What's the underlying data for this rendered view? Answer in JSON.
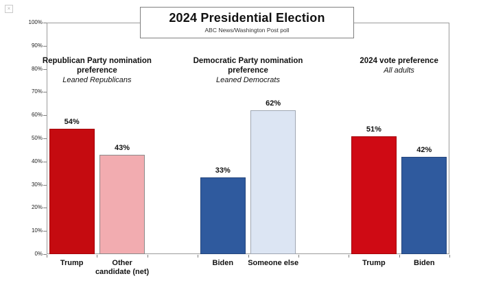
{
  "window": {
    "background": "#ffffff"
  },
  "icons": {
    "broken_image_glyph": "×"
  },
  "title_box": {
    "title": "2024 Presidential Election",
    "subtitle": "ABC News/Washington Post poll"
  },
  "chart_data": {
    "type": "bar",
    "title": "2024 Presidential Election",
    "subtitle": "ABC News/Washington Post poll",
    "xlabel": "",
    "ylabel": "",
    "ylim": [
      0,
      100
    ],
    "ytick_step": 10,
    "ytick_suffix": "%",
    "grid": false,
    "legend": "none",
    "categories": [
      "Trump",
      "Other candidate (net)",
      "Biden",
      "Someone else",
      "Trump",
      "Biden"
    ],
    "values": [
      54,
      43,
      33,
      62,
      51,
      42
    ],
    "groups": [
      {
        "header": "Republican Party nomination preference",
        "subheader": "Leaned Republicans",
        "bars": [
          {
            "label": "Trump",
            "value": 54,
            "display": "54%",
            "fill": "#C50B10",
            "border": "#A30309"
          },
          {
            "label": "Other candidate (net)",
            "label_lines": [
              "Other",
              "candidate (net)"
            ],
            "value": 43,
            "display": "43%",
            "fill": "#F2ACB0",
            "border": "#8A8A8A"
          }
        ]
      },
      {
        "header": "Democratic Party nomination preference",
        "subheader": "Leaned Democrats",
        "bars": [
          {
            "label": "Biden",
            "value": 33,
            "display": "33%",
            "fill": "#2F5A9E",
            "border": "#24457C"
          },
          {
            "label": "Someone else",
            "value": 62,
            "display": "62%",
            "fill": "#DCE5F3",
            "border": "#9FA6B2"
          }
        ]
      },
      {
        "header": "2024 vote preference",
        "subheader": "All adults",
        "bars": [
          {
            "label": "Trump",
            "value": 51,
            "display": "51%",
            "fill": "#CF0A14",
            "border": "#A30309"
          },
          {
            "label": "Biden",
            "value": 42,
            "display": "42%",
            "fill": "#2F5A9E",
            "border": "#24457C"
          }
        ]
      }
    ]
  }
}
